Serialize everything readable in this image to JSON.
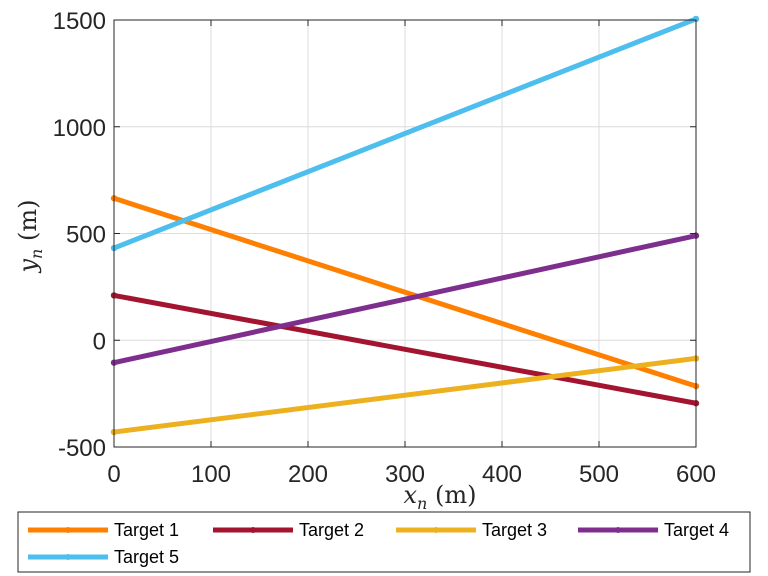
{
  "chart_data": {
    "type": "line",
    "xlabel": "x_n (m)",
    "ylabel": "y_n (m)",
    "xlim": [
      0,
      600
    ],
    "ylim": [
      -500,
      1500
    ],
    "xticks": [
      0,
      100,
      200,
      300,
      400,
      500,
      600
    ],
    "yticks": [
      -500,
      0,
      500,
      1000,
      1500
    ],
    "grid": true,
    "legend_placement": "bottom-outside",
    "series": [
      {
        "name": "Target 1",
        "color": "#FF8000",
        "x": [
          0,
          600
        ],
        "y": [
          665,
          -215
        ]
      },
      {
        "name": "Target 2",
        "color": "#A2142F",
        "x": [
          0,
          600
        ],
        "y": [
          210,
          -295
        ]
      },
      {
        "name": "Target 3",
        "color": "#EDB120",
        "x": [
          0,
          600
        ],
        "y": [
          -430,
          -85
        ]
      },
      {
        "name": "Target 4",
        "color": "#7E2F8E",
        "x": [
          0,
          600
        ],
        "y": [
          -105,
          490
        ]
      },
      {
        "name": "Target 5",
        "color": "#4DBEEE",
        "x": [
          0,
          600
        ],
        "y": [
          432,
          1505
        ]
      }
    ]
  }
}
